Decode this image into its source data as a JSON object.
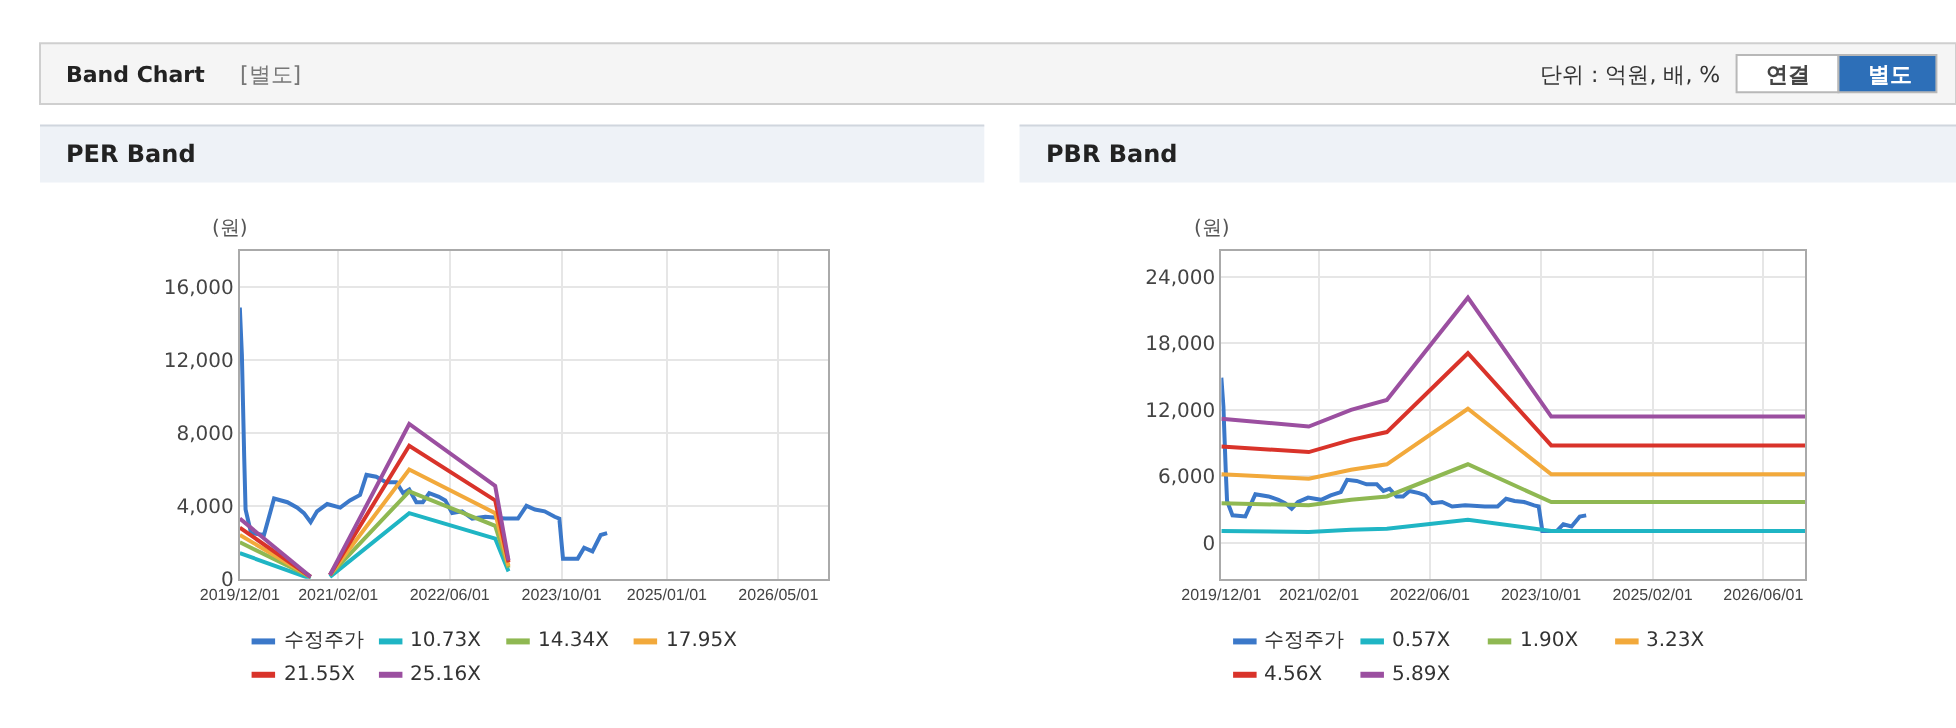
{
  "chart_data": [
    {
      "type": "other",
      "title": "Band Chart",
      "annotations": [
        "[별도]",
        "단위 : 억원, 배, %",
        "연결",
        "별도"
      ]
    },
    {
      "type": "line",
      "title": "PER Band",
      "ylabel": "(원)",
      "xlim": [
        "2019-12-01",
        "2026-12-01"
      ],
      "xticks": [
        {
          "value": "2019-12-01",
          "label": "2019/12/01"
        },
        {
          "value": "2021-02-01",
          "label": "2021/02/01"
        },
        {
          "value": "2022-06-01",
          "label": "2022/06/01"
        },
        {
          "value": "2023-10-01",
          "label": "2023/10/01"
        },
        {
          "value": "2025-01-01",
          "label": "2025/01/01"
        },
        {
          "value": "2026-05-01",
          "label": "2026/05/01"
        }
      ],
      "ylim": [
        0,
        18000
      ],
      "yticks": [
        0,
        {
          "value": 4000,
          "label": "4,000"
        },
        {
          "value": 8000,
          "label": "8,000"
        },
        {
          "value": 12000,
          "label": "12,000"
        },
        {
          "value": 16000,
          "label": "16,000"
        }
      ],
      "grid": true,
      "legend": "bottom",
      "marker": "none",
      "line_style": "solid",
      "series": [
        {
          "name": "수정주가",
          "color": "#3b78c9",
          "x": [
            "2019-12-01",
            "2019-12-10",
            "2019-12-15",
            "2019-12-20",
            "2019-12-26",
            "2020-01-19",
            "2020-03-15",
            "2020-04-28",
            "2020-06-25",
            "2020-08-07",
            "2020-09-05",
            "2020-10-04",
            "2020-11-01",
            "2020-12-15",
            "2021-02-10",
            "2021-03-24",
            "2021-05-07",
            "2021-06-04",
            "2021-07-16",
            "2021-08-28",
            "2021-10-12",
            "2021-11-10",
            "2021-12-07",
            "2022-01-07",
            "2022-02-04",
            "2022-03-04",
            "2022-04-15",
            "2022-05-13",
            "2022-06-12",
            "2022-07-25",
            "2022-09-07",
            "2022-11-03",
            "2023-01-28",
            "2023-03-25",
            "2023-05-01",
            "2023-06-07",
            "2023-07-19",
            "2023-09-01",
            "2023-09-21",
            "2023-10-07",
            "2023-12-10",
            "2024-01-07",
            "2024-02-12",
            "2024-03-19",
            "2024-04-16"
          ],
          "values": [
            14900,
            12300,
            9500,
            6700,
            3800,
            2500,
            2400,
            4400,
            4200,
            3900,
            3600,
            3100,
            3700,
            4100,
            3900,
            4300,
            4600,
            5700,
            5600,
            5300,
            5300,
            4700,
            4900,
            4200,
            4200,
            4700,
            4500,
            4300,
            3600,
            3700,
            3300,
            3400,
            3300,
            3300,
            4000,
            3800,
            3700,
            3400,
            3300,
            1100,
            1100,
            1700,
            1500,
            2400,
            2500
          ]
        },
        {
          "name": "10.73X",
          "color": "#1fb5c4",
          "x": [
            "2019-12-01",
            "2020-10-04",
            "2020-11-15",
            "2020-12-27",
            "2021-12-07",
            "2022-12-16",
            "2023-02-12"
          ],
          "values": [
            1400,
            0,
            null,
            100,
            3600,
            2200,
            400
          ]
        },
        {
          "name": "14.34X",
          "color": "#8fb852",
          "x": [
            "2019-12-01",
            "2020-10-04",
            "2020-11-15",
            "2020-12-27",
            "2021-12-07",
            "2022-12-16",
            "2023-02-12"
          ],
          "values": [
            2000,
            100,
            null,
            200,
            4800,
            2900,
            600
          ]
        },
        {
          "name": "17.95X",
          "color": "#f2a93b",
          "x": [
            "2019-12-01",
            "2020-10-04",
            "2020-11-15",
            "2020-12-27",
            "2021-12-07",
            "2022-12-16",
            "2023-02-12"
          ],
          "values": [
            2400,
            100,
            null,
            200,
            6000,
            3600,
            700
          ]
        },
        {
          "name": "21.55X",
          "color": "#d9332a",
          "x": [
            "2019-12-01",
            "2020-10-04",
            "2020-11-15",
            "2020-12-27",
            "2021-12-07",
            "2022-12-16",
            "2023-02-12"
          ],
          "values": [
            2800,
            100,
            null,
            200,
            7300,
            4300,
            900
          ]
        },
        {
          "name": "25.16X",
          "color": "#9b4fa0",
          "x": [
            "2019-12-01",
            "2020-10-04",
            "2020-11-15",
            "2020-12-27",
            "2021-12-07",
            "2022-12-16",
            "2023-02-12"
          ],
          "values": [
            3300,
            100,
            null,
            200,
            8500,
            5100,
            1000
          ]
        }
      ]
    },
    {
      "type": "line",
      "title": "PBR Band",
      "ylabel": "(원)",
      "xlim": [
        "2019-12-01",
        "2026-12-01"
      ],
      "xticks": [
        {
          "value": "2019-12-01",
          "label": "2019/12/01"
        },
        {
          "value": "2021-02-01",
          "label": "2021/02/01"
        },
        {
          "value": "2022-06-01",
          "label": "2022/06/01"
        },
        {
          "value": "2023-10-01",
          "label": "2023/10/01"
        },
        {
          "value": "2025-02-01",
          "label": "2025/02/01"
        },
        {
          "value": "2026-06-01",
          "label": "2026/06/01"
        }
      ],
      "ylim": [
        -3200,
        26300
      ],
      "yticks": [
        0,
        {
          "value": 6000,
          "label": "6,000"
        },
        {
          "value": 12000,
          "label": "12,000"
        },
        {
          "value": 18000,
          "label": "18,000"
        },
        {
          "value": 24000,
          "label": "24,000"
        }
      ],
      "grid": true,
      "legend": "bottom",
      "marker": "none",
      "line_style": "solid",
      "series": [
        {
          "name": "수정주가",
          "color": "#3b78c9",
          "x": [
            "2019-12-01",
            "2019-12-10",
            "2019-12-15",
            "2019-12-20",
            "2019-12-26",
            "2020-01-19",
            "2020-03-15",
            "2020-04-28",
            "2020-06-25",
            "2020-08-07",
            "2020-09-05",
            "2020-10-04",
            "2020-11-01",
            "2020-12-15",
            "2021-02-10",
            "2021-03-24",
            "2021-05-07",
            "2021-06-04",
            "2021-07-16",
            "2021-08-28",
            "2021-10-12",
            "2021-11-10",
            "2021-12-07",
            "2022-01-07",
            "2022-02-04",
            "2022-03-04",
            "2022-04-15",
            "2022-05-13",
            "2022-06-12",
            "2022-07-25",
            "2022-09-07",
            "2022-11-03",
            "2023-01-28",
            "2023-03-25",
            "2023-05-01",
            "2023-06-07",
            "2023-07-19",
            "2023-09-01",
            "2023-09-21",
            "2023-10-07",
            "2023-12-10",
            "2024-01-07",
            "2024-02-12",
            "2024-03-19",
            "2024-04-16"
          ],
          "values": [
            14900,
            12300,
            9500,
            6700,
            3800,
            2500,
            2400,
            4400,
            4200,
            3900,
            3600,
            3100,
            3700,
            4100,
            3900,
            4300,
            4600,
            5700,
            5600,
            5300,
            5300,
            4700,
            4900,
            4200,
            4200,
            4700,
            4500,
            4300,
            3600,
            3700,
            3300,
            3400,
            3300,
            3300,
            4000,
            3800,
            3700,
            3400,
            3300,
            1100,
            1100,
            1700,
            1500,
            2400,
            2500
          ]
        },
        {
          "name": "0.57X",
          "color": "#1fb5c4",
          "x": [
            "2019-12-01",
            "2020-12-18",
            "2021-06-21",
            "2021-11-25",
            "2022-11-15",
            "2023-11-15",
            "2026-12-01"
          ],
          "values": [
            1100,
            1000,
            1200,
            1300,
            2100,
            1100,
            1100
          ]
        },
        {
          "name": "1.90X",
          "color": "#8fb852",
          "x": [
            "2019-12-01",
            "2020-12-18",
            "2021-06-21",
            "2021-11-25",
            "2022-11-15",
            "2023-11-15",
            "2026-12-01"
          ],
          "values": [
            3600,
            3400,
            3900,
            4200,
            7100,
            3700,
            3700
          ]
        },
        {
          "name": "3.23X",
          "color": "#f2a93b",
          "x": [
            "2019-12-01",
            "2020-12-18",
            "2021-06-21",
            "2021-11-25",
            "2022-11-15",
            "2023-11-15",
            "2026-12-01"
          ],
          "values": [
            6200,
            5800,
            6600,
            7100,
            12100,
            6200,
            6200
          ]
        },
        {
          "name": "4.56X",
          "color": "#d9332a",
          "x": [
            "2019-12-01",
            "2020-12-18",
            "2021-06-21",
            "2021-11-25",
            "2022-11-15",
            "2023-11-15",
            "2026-12-01"
          ],
          "values": [
            8700,
            8200,
            9300,
            10000,
            17100,
            8800,
            8800
          ]
        },
        {
          "name": "5.89X",
          "color": "#9b4fa0",
          "x": [
            "2019-12-01",
            "2020-12-18",
            "2021-06-21",
            "2021-11-25",
            "2022-11-15",
            "2023-11-15",
            "2026-12-01"
          ],
          "values": [
            11200,
            10500,
            12000,
            12900,
            22100,
            11400,
            11400
          ]
        }
      ]
    }
  ]
}
